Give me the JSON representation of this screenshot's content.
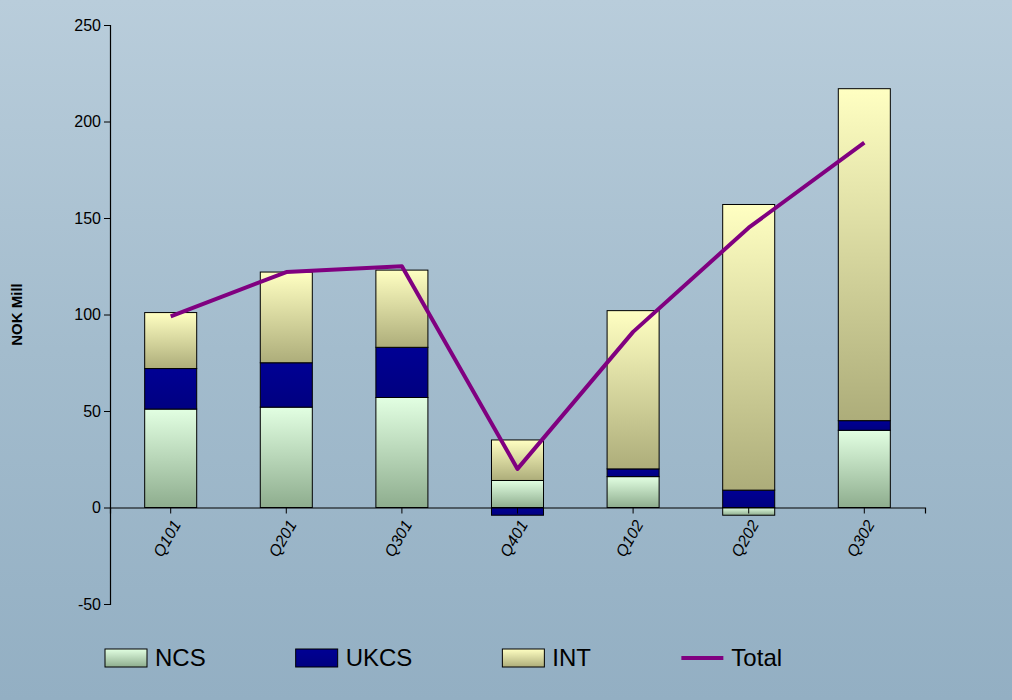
{
  "chart_data": {
    "type": "bar",
    "stacked": true,
    "y_label": "NOK Mill",
    "categories": [
      "Q101",
      "Q201",
      "Q301",
      "Q401",
      "Q102",
      "Q202",
      "Q302"
    ],
    "ylim": [
      -50,
      250
    ],
    "yticks": [
      -50,
      0,
      50,
      100,
      150,
      200,
      250
    ],
    "legend": "bottom",
    "series": [
      {
        "name": "NCS",
        "color": "#c4eec4",
        "values": [
          51,
          52,
          57,
          14,
          16,
          -4,
          40
        ]
      },
      {
        "name": "UKCS",
        "color": "#000080",
        "values": [
          21,
          23,
          26,
          -4,
          4,
          9,
          5
        ]
      },
      {
        "name": "INT",
        "color": "#eeeea8",
        "values": [
          29,
          47,
          40,
          21,
          82,
          148,
          172
        ]
      },
      {
        "name": "Total",
        "type": "line",
        "color": "#800080",
        "values": [
          99,
          122,
          125,
          20,
          91,
          145,
          189
        ]
      }
    ]
  }
}
